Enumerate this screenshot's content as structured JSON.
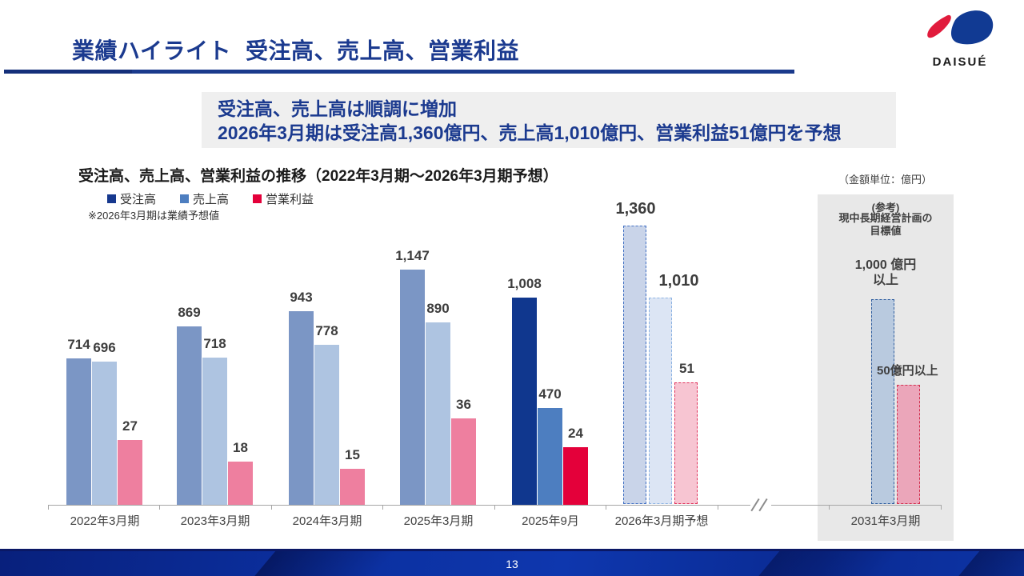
{
  "header": {
    "title": "業績ハイライト",
    "subtitle": "受注高、売上高、営業利益",
    "logo_text": "DAISUÉ"
  },
  "highlight": {
    "line1": "受注高、売上高は順調に増加",
    "line2": "2026年3月期は受注高1,360億円、売上高1,010億円、営業利益51億円を予想"
  },
  "chart_header": {
    "title": "受注高、売上高、営業利益の推移（2022年3月期～2026年3月期予想）",
    "unit_note": "（金額単位：億円）",
    "forecast_note": "※2026年3月期は業績予想値"
  },
  "legend": [
    {
      "label": "受注高",
      "color": "#16388e"
    },
    {
      "label": "売上高",
      "color": "#4d7ec0"
    },
    {
      "label": "営業利益",
      "color": "#e4003a"
    }
  ],
  "colors": {
    "past": {
      "orders": "#7b96c5",
      "sales": "#aec4e1",
      "profit": "#ee7f9f"
    },
    "current": {
      "orders": "#10378e",
      "sales": "#4d7ec0",
      "profit": "#e4003a"
    },
    "forecast": {
      "orders": [
        "#c9d4e9",
        "#4472c4"
      ],
      "sales": [
        "#dce5f4",
        "#8eb4e3"
      ],
      "profit": [
        "#f7c5d2",
        "#e0315a"
      ]
    },
    "reference": {
      "orders": [
        "#b9cadf",
        "#2f5d9e"
      ],
      "profit": [
        "#eba6ba",
        "#d2304f"
      ]
    }
  },
  "chart_data": {
    "type": "bar",
    "title": "受注高、売上高、営業利益の推移（2022年3月期～2026年3月期予想）",
    "unit": "億円",
    "series_names": [
      "受注高",
      "売上高",
      "営業利益"
    ],
    "categories": [
      "2022年3月期",
      "2023年3月期",
      "2024年3月期",
      "2025年3月期",
      "2025年9月",
      "2026年3月期予想"
    ],
    "layout_hints": {
      "legend_position": "top-left",
      "grid": false,
      "profit_on_secondary_scale": true,
      "axis_break_before_reference": true
    },
    "groups": [
      {
        "category": "2022年3月期",
        "style": "past",
        "orders": 714,
        "sales": 696,
        "profit": 27
      },
      {
        "category": "2023年3月期",
        "style": "past",
        "orders": 869,
        "sales": 718,
        "profit": 18
      },
      {
        "category": "2024年3月期",
        "style": "past",
        "orders": 943,
        "sales": 778,
        "profit": 15
      },
      {
        "category": "2025年3月期",
        "style": "past",
        "orders": 1147,
        "sales": 890,
        "profit": 36
      },
      {
        "category": "2025年9月",
        "style": "current",
        "orders": 1008,
        "sales": 470,
        "profit": 24
      },
      {
        "category": "2026年3月期予想",
        "style": "forecast",
        "orders": 1360,
        "sales": 1010,
        "profit": 51
      }
    ],
    "reference": {
      "category": "2031年3月期",
      "heading1": "(参考)",
      "heading2": "現中長期経営計画の\n目標値",
      "target_main": "1,000 億円\n以上",
      "target_profit": "50億円以上",
      "orders_value": 1000,
      "profit_value": 50
    }
  },
  "footer": {
    "page_number": "13"
  }
}
